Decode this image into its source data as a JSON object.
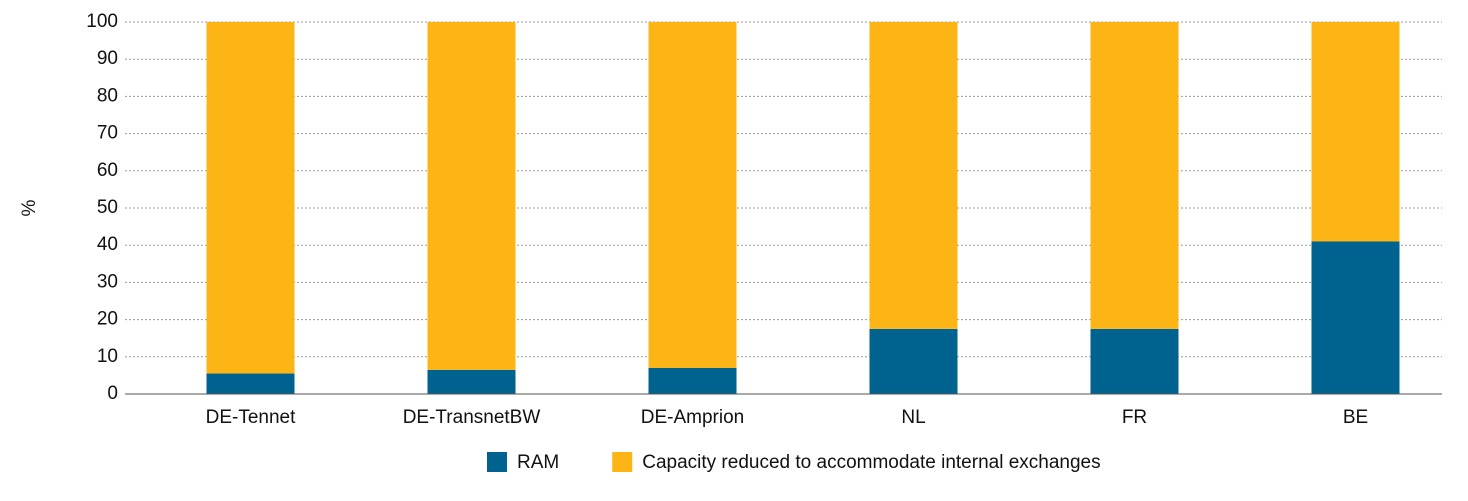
{
  "chart_data": {
    "type": "stacked_bar",
    "y_label": "%",
    "categories": [
      "DE-Tennet",
      "DE-TransnetBW",
      "DE-Amprion",
      "NL",
      "FR",
      "BE"
    ],
    "series": [
      {
        "name": "RAM",
        "color": "#00628f",
        "values": [
          5.5,
          6.5,
          7,
          17.5,
          17.5,
          41
        ]
      },
      {
        "name": "Capacity reduced to accommodate internal exchanges",
        "color": "#fdb515",
        "values": [
          94.5,
          93.5,
          93,
          82.5,
          82.5,
          59
        ]
      }
    ],
    "ylim": [
      0,
      100
    ],
    "yticks": [
      0,
      10,
      20,
      30,
      40,
      50,
      60,
      70,
      80,
      90,
      100
    ],
    "grid": true,
    "legend": "bottom"
  }
}
